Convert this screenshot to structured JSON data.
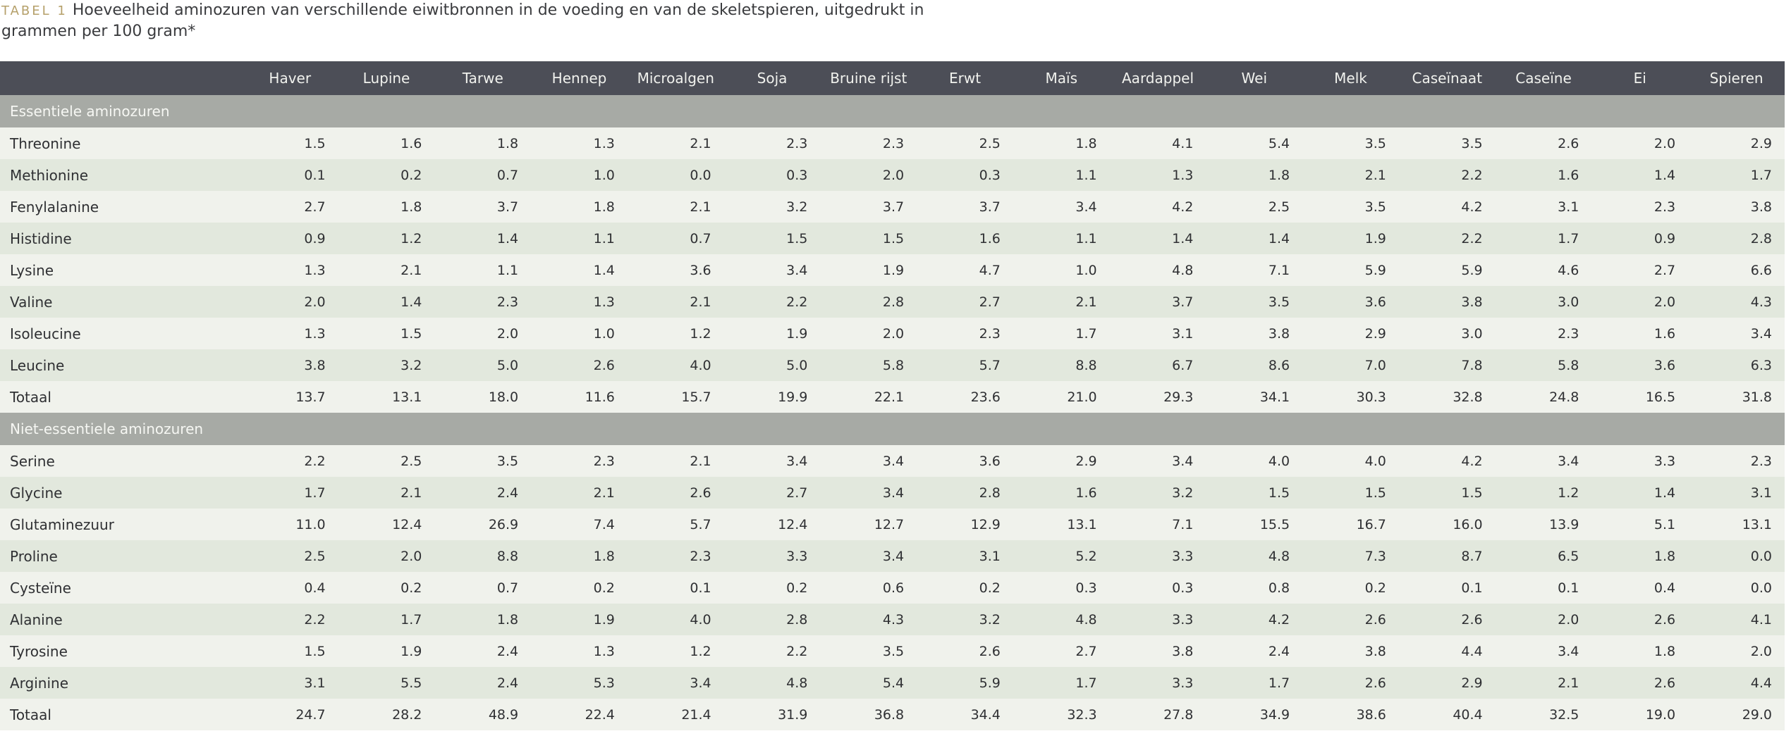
{
  "caption": {
    "label": "TABEL 1",
    "text": "Hoeveelheid aminozuren van verschillende eiwitbronnen in de voeding en van de skeletspieren, uitgedrukt in grammen per 100 gram*"
  },
  "table": {
    "columns": [
      "Haver",
      "Lupine",
      "Tarwe",
      "Hennep",
      "Microalgen",
      "Soja",
      "Bruine rijst",
      "Erwt",
      "Maïs",
      "Aardappel",
      "Wei",
      "Melk",
      "Caseïnaat",
      "Caseïne",
      "Ei",
      "Spieren"
    ],
    "sections": [
      {
        "title": "Essentiele aminozuren",
        "rows": [
          {
            "label": "Threonine",
            "values": [
              "1.5",
              "1.6",
              "1.8",
              "1.3",
              "2.1",
              "2.3",
              "2.3",
              "2.5",
              "1.8",
              "4.1",
              "5.4",
              "3.5",
              "3.5",
              "2.6",
              "2.0",
              "2.9"
            ]
          },
          {
            "label": "Methionine",
            "values": [
              "0.1",
              "0.2",
              "0.7",
              "1.0",
              "0.0",
              "0.3",
              "2.0",
              "0.3",
              "1.1",
              "1.3",
              "1.8",
              "2.1",
              "2.2",
              "1.6",
              "1.4",
              "1.7"
            ]
          },
          {
            "label": "Fenylalanine",
            "values": [
              "2.7",
              "1.8",
              "3.7",
              "1.8",
              "2.1",
              "3.2",
              "3.7",
              "3.7",
              "3.4",
              "4.2",
              "2.5",
              "3.5",
              "4.2",
              "3.1",
              "2.3",
              "3.8"
            ]
          },
          {
            "label": "Histidine",
            "values": [
              "0.9",
              "1.2",
              "1.4",
              "1.1",
              "0.7",
              "1.5",
              "1.5",
              "1.6",
              "1.1",
              "1.4",
              "1.4",
              "1.9",
              "2.2",
              "1.7",
              "0.9",
              "2.8"
            ]
          },
          {
            "label": "Lysine",
            "values": [
              "1.3",
              "2.1",
              "1.1",
              "1.4",
              "3.6",
              "3.4",
              "1.9",
              "4.7",
              "1.0",
              "4.8",
              "7.1",
              "5.9",
              "5.9",
              "4.6",
              "2.7",
              "6.6"
            ]
          },
          {
            "label": "Valine",
            "values": [
              "2.0",
              "1.4",
              "2.3",
              "1.3",
              "2.1",
              "2.2",
              "2.8",
              "2.7",
              "2.1",
              "3.7",
              "3.5",
              "3.6",
              "3.8",
              "3.0",
              "2.0",
              "4.3"
            ]
          },
          {
            "label": "Isoleucine",
            "values": [
              "1.3",
              "1.5",
              "2.0",
              "1.0",
              "1.2",
              "1.9",
              "2.0",
              "2.3",
              "1.7",
              "3.1",
              "3.8",
              "2.9",
              "3.0",
              "2.3",
              "1.6",
              "3.4"
            ]
          },
          {
            "label": "Leucine",
            "values": [
              "3.8",
              "3.2",
              "5.0",
              "2.6",
              "4.0",
              "5.0",
              "5.8",
              "5.7",
              "8.8",
              "6.7",
              "8.6",
              "7.0",
              "7.8",
              "5.8",
              "3.6",
              "6.3"
            ]
          },
          {
            "label": "Totaal",
            "values": [
              "13.7",
              "13.1",
              "18.0",
              "11.6",
              "15.7",
              "19.9",
              "22.1",
              "23.6",
              "21.0",
              "29.3",
              "34.1",
              "30.3",
              "32.8",
              "24.8",
              "16.5",
              "31.8"
            ]
          }
        ]
      },
      {
        "title": "Niet-essentiele aminozuren",
        "rows": [
          {
            "label": "Serine",
            "values": [
              "2.2",
              "2.5",
              "3.5",
              "2.3",
              "2.1",
              "3.4",
              "3.4",
              "3.6",
              "2.9",
              "3.4",
              "4.0",
              "4.0",
              "4.2",
              "3.4",
              "3.3",
              "2.3"
            ]
          },
          {
            "label": "Glycine",
            "values": [
              "1.7",
              "2.1",
              "2.4",
              "2.1",
              "2.6",
              "2.7",
              "3.4",
              "2.8",
              "1.6",
              "3.2",
              "1.5",
              "1.5",
              "1.5",
              "1.2",
              "1.4",
              "3.1"
            ]
          },
          {
            "label": "Glutaminezuur",
            "values": [
              "11.0",
              "12.4",
              "26.9",
              "7.4",
              "5.7",
              "12.4",
              "12.7",
              "12.9",
              "13.1",
              "7.1",
              "15.5",
              "16.7",
              "16.0",
              "13.9",
              "5.1",
              "13.1"
            ]
          },
          {
            "label": "Proline",
            "values": [
              "2.5",
              "2.0",
              "8.8",
              "1.8",
              "2.3",
              "3.3",
              "3.4",
              "3.1",
              "5.2",
              "3.3",
              "4.8",
              "7.3",
              "8.7",
              "6.5",
              "1.8",
              "0.0"
            ]
          },
          {
            "label": "Cysteïne",
            "values": [
              "0.4",
              "0.2",
              "0.7",
              "0.2",
              "0.1",
              "0.2",
              "0.6",
              "0.2",
              "0.3",
              "0.3",
              "0.8",
              "0.2",
              "0.1",
              "0.1",
              "0.4",
              "0.0"
            ]
          },
          {
            "label": "Alanine",
            "values": [
              "2.2",
              "1.7",
              "1.8",
              "1.9",
              "4.0",
              "2.8",
              "4.3",
              "3.2",
              "4.8",
              "3.3",
              "4.2",
              "2.6",
              "2.6",
              "2.0",
              "2.6",
              "4.1"
            ]
          },
          {
            "label": "Tyrosine",
            "values": [
              "1.5",
              "1.9",
              "2.4",
              "1.3",
              "1.2",
              "2.2",
              "3.5",
              "2.6",
              "2.7",
              "3.8",
              "2.4",
              "3.8",
              "4.4",
              "3.4",
              "1.8",
              "2.0"
            ]
          },
          {
            "label": "Arginine",
            "values": [
              "3.1",
              "5.5",
              "2.4",
              "5.3",
              "3.4",
              "4.8",
              "5.4",
              "5.9",
              "1.7",
              "3.3",
              "1.7",
              "2.6",
              "2.9",
              "2.1",
              "2.6",
              "4.4"
            ]
          },
          {
            "label": "Totaal",
            "values": [
              "24.7",
              "28.2",
              "48.9",
              "22.4",
              "21.4",
              "31.9",
              "36.8",
              "34.4",
              "32.3",
              "27.8",
              "34.9",
              "38.6",
              "40.4",
              "32.5",
              "19.0",
              "29.0"
            ]
          }
        ]
      }
    ]
  }
}
